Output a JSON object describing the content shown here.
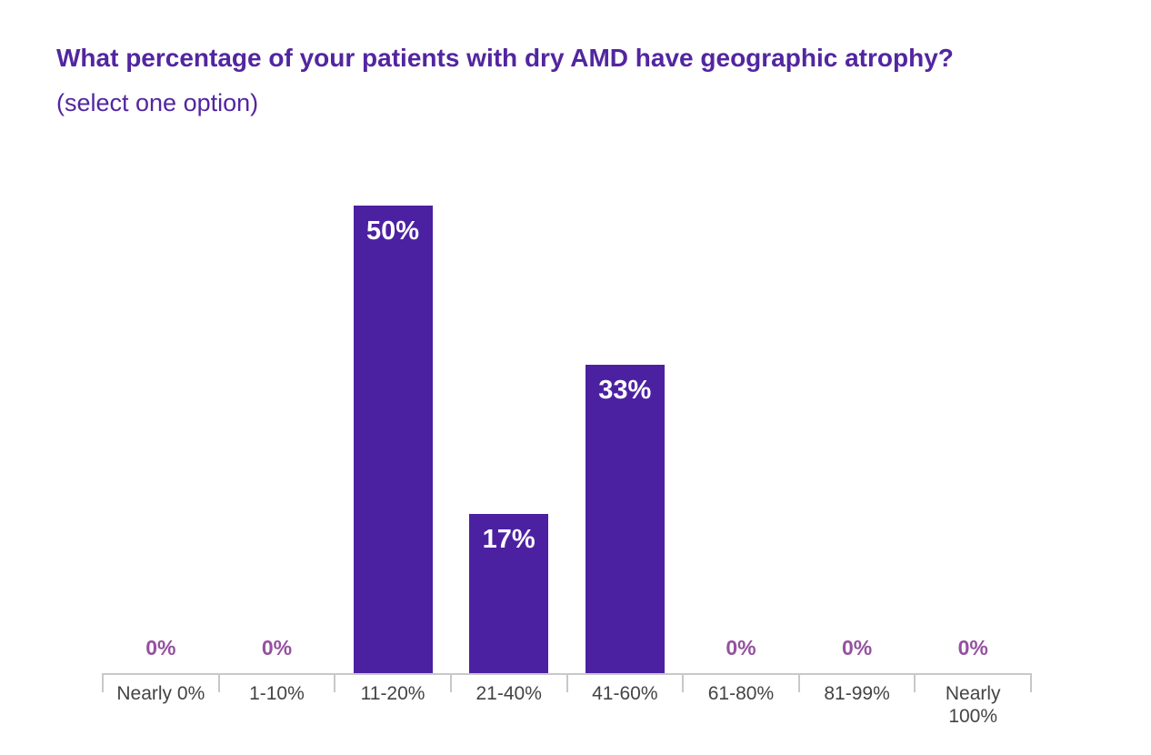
{
  "chart_data": {
    "type": "bar",
    "title": "What percentage of your patients with dry AMD have geographic atrophy?",
    "subtitle": "(select one option)",
    "categories": [
      "Nearly 0%",
      "1-10%",
      "11-20%",
      "21-40%",
      "41-60%",
      "61-80%",
      "81-99%",
      "Nearly 100%"
    ],
    "values": [
      0,
      0,
      50,
      17,
      33,
      0,
      0,
      0
    ],
    "value_labels": [
      "0%",
      "0%",
      "50%",
      "17%",
      "33%",
      "0%",
      "0%",
      "0%"
    ],
    "unit": "%",
    "ylim": [
      0,
      50
    ],
    "grid": false,
    "legend": "none",
    "y_axis_visible": false,
    "value_label_position": {
      "nonzero": "inside-bar-top",
      "zero": "above-axis"
    },
    "colors": {
      "bar_fill": "#4c21a1",
      "bar_value_label": "#ffffff",
      "zero_value_label": "#94519f",
      "title": "#5226a0",
      "category_label": "#444444",
      "axis": "#c8c8c8"
    }
  }
}
